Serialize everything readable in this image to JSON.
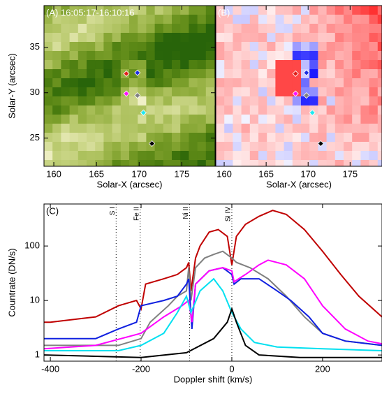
{
  "chart_data": [
    {
      "type": "image",
      "title": "(A) 16:05:17-16:10:16",
      "palette": "green",
      "xlabel": "Solar-X (arcsec)",
      "ylabel": "Solar-Y (arcsec)",
      "xlim": [
        158.85,
        178.9
      ],
      "ylim": [
        21.9,
        39.6
      ],
      "xticks": [
        160,
        165,
        170,
        175
      ],
      "yticks": [
        25,
        30,
        35
      ],
      "markers": {
        "x": [
          168.5,
          169.8,
          168.5,
          169.8,
          170.5,
          171.5
        ],
        "y": [
          32.1,
          32.2,
          29.9,
          29.7,
          27.8,
          24.4
        ],
        "colors": [
          "#e0201a",
          "#1c2ee0",
          "#ff10ff",
          "#808080",
          "#20e8f0",
          "#000000"
        ]
      }
    },
    {
      "type": "image",
      "title": "(B)",
      "palette": "doppler",
      "xlabel": "Solar-X (arcsec)",
      "xlim": [
        159.0,
        178.8
      ],
      "ylim": [
        21.9,
        39.6
      ],
      "xticks": [
        160,
        165,
        170,
        175
      ],
      "markers": {
        "x": [
          168.5,
          169.8,
          168.5,
          169.8,
          170.5,
          171.5
        ],
        "y": [
          32.1,
          32.2,
          29.9,
          29.7,
          27.8,
          24.4
        ],
        "colors": [
          "#e0201a",
          "#1c2ee0",
          "#ff10ff",
          "#808080",
          "#20e8f0",
          "#000000"
        ]
      }
    },
    {
      "type": "line",
      "title": "(C)",
      "xlabel": "Doppler shift (km/s)",
      "ylabel": "Countrate (DN/s)",
      "log_y": true,
      "xlim": [
        -414,
        331
      ],
      "ylim": [
        0.77,
        590
      ],
      "xticks": [
        -400,
        -200,
        0,
        200
      ],
      "yticks": [
        1,
        10,
        100
      ],
      "annotations": [
        {
          "text": "S I",
          "x": -255
        },
        {
          "text": "Fe II",
          "x": -202
        },
        {
          "text": "Ni II",
          "x": -93
        },
        {
          "text": "Si IV",
          "x": 0
        }
      ],
      "series": [
        {
          "color": "#c00000",
          "x": [
            -414,
            -400,
            -300,
            -250,
            -210,
            -200,
            -190,
            -150,
            -120,
            -100,
            -95,
            -90,
            -80,
            -70,
            -50,
            -30,
            -10,
            0,
            10,
            30,
            60,
            90,
            120,
            160,
            200,
            240,
            280,
            331
          ],
          "values": [
            4,
            4,
            5,
            8,
            10,
            7,
            20,
            25,
            30,
            40,
            50,
            15,
            60,
            100,
            180,
            200,
            150,
            45,
            150,
            250,
            350,
            450,
            380,
            200,
            80,
            30,
            12,
            5
          ]
        },
        {
          "color": "#808080",
          "x": [
            -414,
            -250,
            -200,
            -180,
            -140,
            -120,
            -100,
            -95,
            -90,
            -80,
            -60,
            -40,
            -20,
            0,
            10,
            40,
            80,
            120,
            160,
            200,
            250,
            331
          ],
          "values": [
            1.5,
            1.5,
            2,
            4,
            8,
            12,
            15,
            40,
            10,
            40,
            60,
            70,
            80,
            60,
            50,
            40,
            25,
            12,
            5,
            2.5,
            1.8,
            1.5
          ]
        },
        {
          "color": "#1020e0",
          "x": [
            -414,
            -300,
            -250,
            -210,
            -200,
            -150,
            -120,
            -100,
            -95,
            -88,
            -80,
            -50,
            -20,
            0,
            5,
            20,
            60,
            100,
            130,
            170,
            200,
            250,
            331
          ],
          "values": [
            2,
            2,
            3,
            4,
            8,
            10,
            12,
            20,
            25,
            3,
            20,
            35,
            40,
            30,
            20,
            25,
            25,
            15,
            10,
            5,
            2.5,
            1.8,
            1.5
          ]
        },
        {
          "color": "#ff00ff",
          "x": [
            -414,
            -300,
            -200,
            -150,
            -110,
            -95,
            -88,
            -80,
            -50,
            -20,
            0,
            5,
            30,
            60,
            80,
            120,
            160,
            200,
            250,
            300,
            331
          ],
          "values": [
            1.3,
            1.5,
            2.5,
            5,
            8,
            10,
            4,
            20,
            35,
            40,
            35,
            22,
            30,
            45,
            55,
            45,
            25,
            8,
            3,
            1.8,
            1.6
          ]
        },
        {
          "color": "#00e0f0",
          "x": [
            -414,
            -250,
            -200,
            -150,
            -120,
            -100,
            -90,
            -70,
            -40,
            -20,
            0,
            20,
            50,
            100,
            200,
            331
          ],
          "values": [
            1.2,
            1.2,
            1.5,
            2.5,
            6,
            12,
            6,
            15,
            25,
            15,
            6,
            3,
            1.7,
            1.4,
            1.3,
            1.2
          ]
        },
        {
          "color": "#000000",
          "x": [
            -414,
            -200,
            -100,
            -40,
            -10,
            0,
            10,
            30,
            60,
            150,
            331
          ],
          "values": [
            1,
            0.9,
            1.1,
            2,
            4,
            7,
            4,
            1.5,
            1,
            0.9,
            0.9
          ]
        }
      ]
    }
  ]
}
